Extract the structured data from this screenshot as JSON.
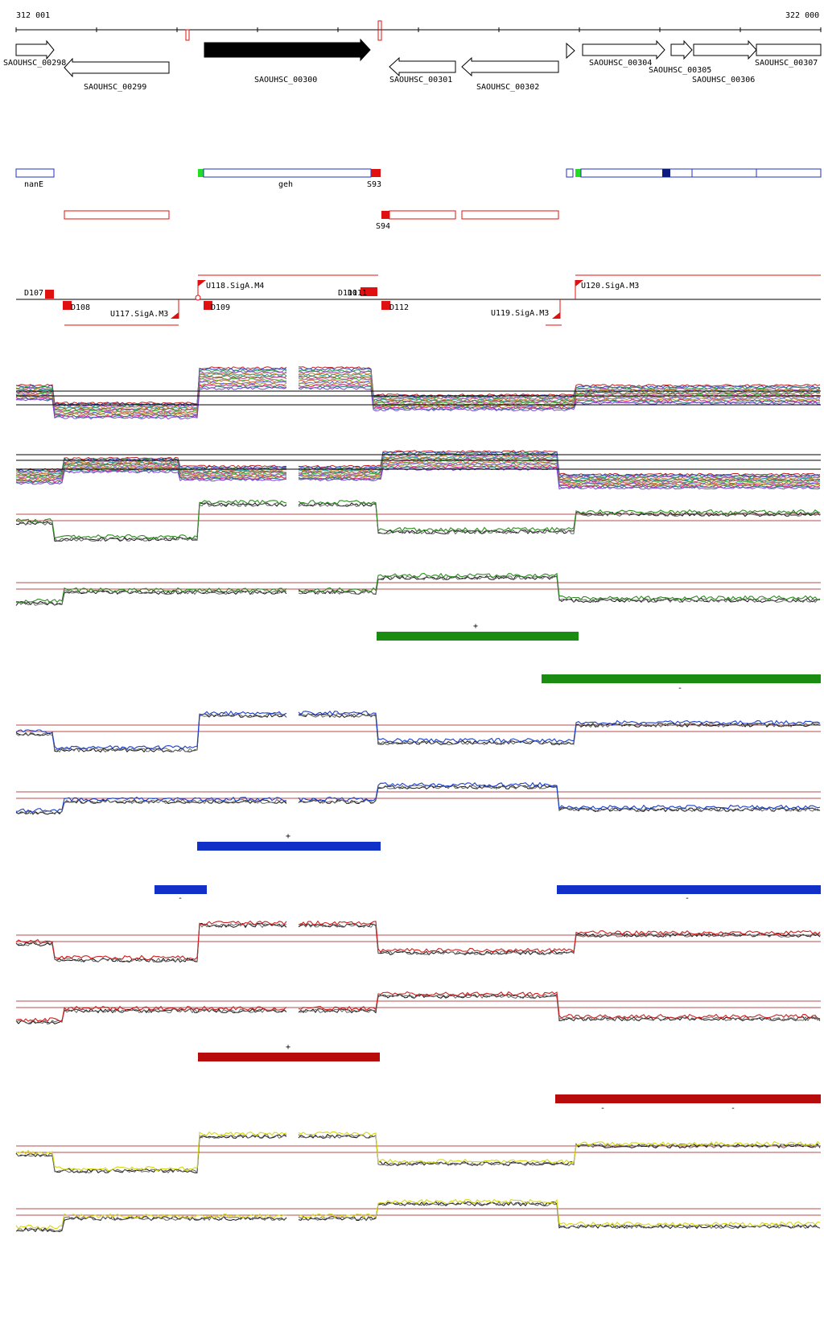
{
  "ruler": {
    "start_label": "312 001",
    "end_label": "322 000"
  },
  "genes": [
    {
      "id": "SAOUHSC_00298",
      "strand": "+",
      "filled": false
    },
    {
      "id": "SAOUHSC_00299",
      "strand": "-",
      "filled": false
    },
    {
      "id": "SAOUHSC_00300",
      "strand": "+",
      "filled": true
    },
    {
      "id": "SAOUHSC_00301",
      "strand": "-",
      "filled": false
    },
    {
      "id": "SAOUHSC_00302",
      "strand": "-",
      "filled": false
    },
    {
      "id": "SAOUHSC_00304",
      "strand": "+",
      "filled": false
    },
    {
      "id": "SAOUHSC_00305",
      "strand": "+",
      "filled": false
    },
    {
      "id": "SAOUHSC_00306",
      "strand": "+",
      "filled": false
    },
    {
      "id": "SAOUHSC_00307",
      "strand": "+",
      "filled": false
    }
  ],
  "annotations_top": [
    {
      "label": "nanE"
    },
    {
      "label": "geh"
    },
    {
      "label": "S93"
    }
  ],
  "annotations_second": [
    {
      "label": "S94"
    }
  ],
  "promoters": [
    {
      "label": "D107"
    },
    {
      "label": "D108"
    },
    {
      "label": "U117.SigA.M3"
    },
    {
      "label": "U118.SigA.M4"
    },
    {
      "label": "D109"
    },
    {
      "label": "D110"
    },
    {
      "label": "D111"
    },
    {
      "label": "D112"
    },
    {
      "label": "U119.SigA.M3"
    },
    {
      "label": "U120.SigA.M3"
    }
  ],
  "tracks": [
    {
      "color": "#2b8c1e",
      "plus_label": "+",
      "minus_label": "-"
    },
    {
      "color": "#1a3fcf",
      "plus_label": "+",
      "minus_label": "-"
    },
    {
      "color": "#d31d1d",
      "plus_label": "+",
      "minus_label": "-"
    },
    {
      "color": "#e0e010",
      "plus_label": "",
      "minus_label": ""
    }
  ],
  "colors": {
    "axis": "#000000",
    "annotation_blue": "#2030c0",
    "annotation_red": "#e01010",
    "green_bar": "#1a8c12",
    "blue_bar": "#1030c8",
    "red_bar": "#b80c0c",
    "baseline": "#a01010"
  }
}
